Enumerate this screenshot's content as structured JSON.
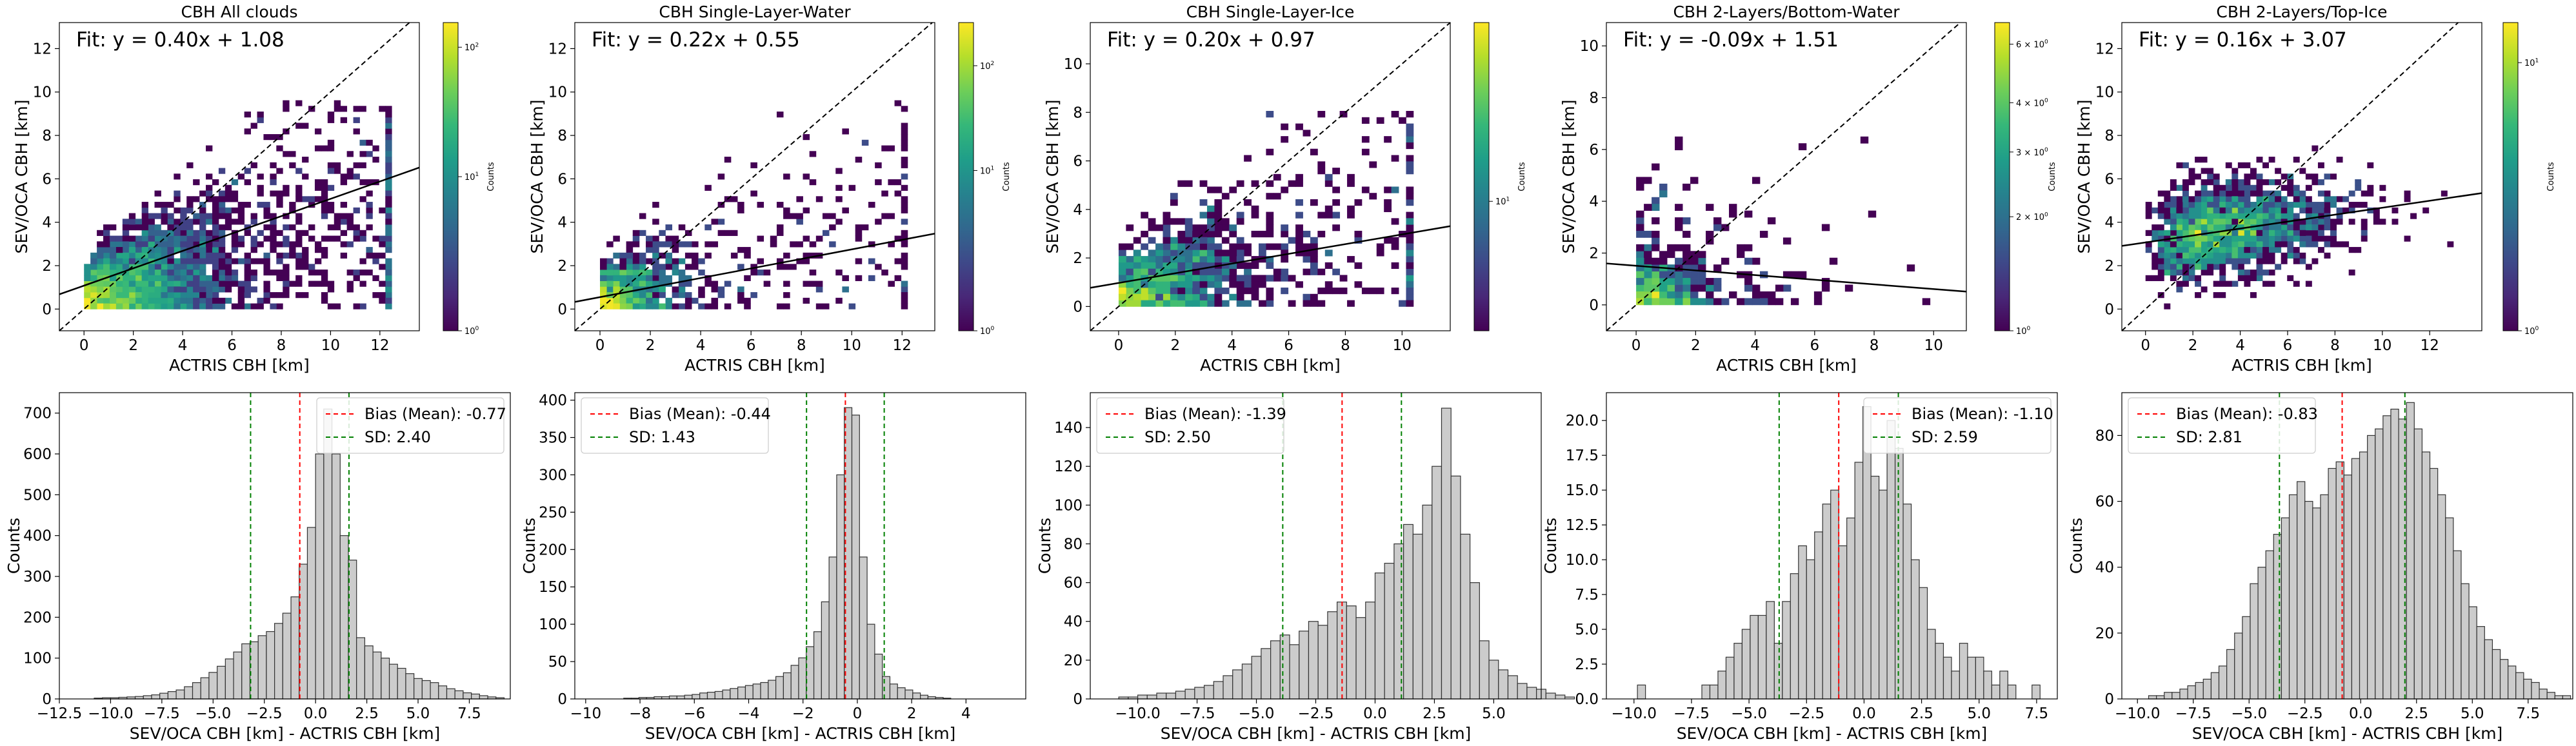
{
  "figure": {
    "colormap": [
      "#440154",
      "#482878",
      "#3e4989",
      "#31688e",
      "#26828e",
      "#1f9e89",
      "#35b779",
      "#6ece58",
      "#b5de2b",
      "#fde725"
    ],
    "colorbar_label": "Counts",
    "identity_line": "dashed",
    "fit_line_color": "#000000",
    "bias_line_color": "#ff0000",
    "sd_line_color": "#008000",
    "hist_fill": "#cccccc"
  },
  "chart_data": [
    {
      "type": "heatmap",
      "title": "CBH All clouds",
      "xlabel": "ACTRIS CBH [km]",
      "ylabel": "SEV/OCA CBH [km]",
      "xlim": [
        -1,
        13.6
      ],
      "ylim": [
        -1,
        13.2
      ],
      "xticks": [
        0,
        2,
        4,
        6,
        8,
        10,
        12
      ],
      "yticks": [
        0,
        2,
        4,
        6,
        8,
        10,
        12
      ],
      "fit_label": "Fit: y = 0.40x + 1.08",
      "fit": {
        "slope": 0.4,
        "intercept": 1.08
      },
      "colorbar": {
        "scale": "log",
        "ticks": [
          "10^0",
          "10^1",
          "10^2"
        ]
      }
    },
    {
      "type": "heatmap",
      "title": "CBH Single-Layer-Water",
      "xlabel": "ACTRIS CBH [km]",
      "ylabel": "SEV/OCA CBH [km]",
      "xlim": [
        -1,
        13.3
      ],
      "ylim": [
        -1,
        13.2
      ],
      "xticks": [
        0,
        2,
        4,
        6,
        8,
        10,
        12
      ],
      "yticks": [
        0,
        2,
        4,
        6,
        8,
        10,
        12
      ],
      "fit_label": "Fit: y = 0.22x + 0.55",
      "fit": {
        "slope": 0.22,
        "intercept": 0.55
      },
      "colorbar": {
        "scale": "log",
        "ticks": [
          "10^0",
          "10^1",
          "10^2"
        ]
      }
    },
    {
      "type": "heatmap",
      "title": "CBH Single-Layer-Ice",
      "xlabel": "ACTRIS CBH [km]",
      "ylabel": "SEV/OCA CBH [km]",
      "xlim": [
        -1,
        11.7
      ],
      "ylim": [
        -1,
        11.7
      ],
      "xticks": [
        0,
        2,
        4,
        6,
        8,
        10
      ],
      "yticks": [
        0,
        2,
        4,
        6,
        8,
        10
      ],
      "fit_label": "Fit: y = 0.20x + 0.97",
      "fit": {
        "slope": 0.2,
        "intercept": 0.97
      },
      "colorbar": {
        "scale": "log",
        "ticks": [
          "10^1"
        ]
      }
    },
    {
      "type": "heatmap",
      "title": "CBH 2-Layers/Bottom-Water",
      "xlabel": "ACTRIS CBH [km]",
      "ylabel": "SEV/OCA CBH [km]",
      "xlim": [
        -1,
        11.1
      ],
      "ylim": [
        -1,
        10.9
      ],
      "xticks": [
        0,
        2,
        4,
        6,
        8,
        10
      ],
      "yticks": [
        0,
        2,
        4,
        6,
        8,
        10
      ],
      "fit_label": "Fit: y = -0.09x + 1.51",
      "fit": {
        "slope": -0.09,
        "intercept": 1.51
      },
      "colorbar": {
        "scale": "log",
        "ticks": [
          "10^0",
          "2 × 10^0",
          "3 × 10^0",
          "4 × 10^0",
          "6 × 10^0"
        ]
      }
    },
    {
      "type": "heatmap",
      "title": "CBH 2-Layers/Top-Ice",
      "xlabel": "ACTRIS CBH [km]",
      "ylabel": "SEV/OCA CBH [km]",
      "xlim": [
        -1,
        14.2
      ],
      "ylim": [
        -1,
        13.2
      ],
      "xticks": [
        0,
        2,
        4,
        6,
        8,
        10,
        12
      ],
      "yticks": [
        0,
        2,
        4,
        6,
        8,
        10,
        12
      ],
      "fit_label": "Fit: y = 0.16x + 3.07",
      "fit": {
        "slope": 0.16,
        "intercept": 3.07
      },
      "colorbar": {
        "scale": "log",
        "ticks": [
          "10^0",
          "10^1"
        ]
      }
    },
    {
      "type": "bar",
      "xlabel": "SEV/OCA CBH [km] - ACTRIS CBH [km]",
      "ylabel": "Counts",
      "xlim": [
        -12.5,
        9.5
      ],
      "ylim": [
        0,
        750
      ],
      "xticks": [
        -12.5,
        -10.0,
        -7.5,
        -5.0,
        -2.5,
        0.0,
        2.5,
        5.0,
        7.5
      ],
      "xtick_labels": [
        "−12.5",
        "−10.0",
        "−7.5",
        "−5.0",
        "−2.5",
        "0.0",
        "2.5",
        "5.0",
        "7.5"
      ],
      "yticks": [
        0,
        100,
        200,
        300,
        400,
        500,
        600,
        700
      ],
      "bias": -0.77,
      "sd": 2.4,
      "legend": [
        "Bias (Mean): -0.77",
        "SD: 2.40"
      ],
      "bin_start": -10.8,
      "bin_width": 0.4,
      "values": [
        2,
        3,
        3,
        4,
        5,
        6,
        8,
        10,
        14,
        18,
        22,
        30,
        40,
        52,
        65,
        80,
        98,
        115,
        135,
        140,
        155,
        165,
        185,
        210,
        250,
        330,
        420,
        600,
        710,
        600,
        400,
        340,
        150,
        130,
        115,
        100,
        85,
        75,
        62,
        50,
        45,
        40,
        32,
        25,
        20,
        15,
        12,
        8,
        5,
        3
      ]
    },
    {
      "type": "bar",
      "xlabel": "SEV/OCA CBH [km] - ACTRIS CBH [km]",
      "ylabel": "Counts",
      "xlim": [
        -10.4,
        6.2
      ],
      "ylim": [
        0,
        410
      ],
      "xticks": [
        -10,
        -8,
        -6,
        -4,
        -2,
        0,
        2,
        4
      ],
      "xtick_labels": [
        "−10",
        "−8",
        "−6",
        "−4",
        "−2",
        "0",
        "2",
        "4"
      ],
      "yticks": [
        0,
        50,
        100,
        150,
        200,
        250,
        300,
        350,
        400
      ],
      "bias": -0.44,
      "sd": 1.43,
      "legend": [
        "Bias (Mean): -0.44",
        "SD: 1.43"
      ],
      "bin_start": -8.6,
      "bin_width": 0.28,
      "values": [
        1,
        1,
        2,
        2,
        3,
        3,
        4,
        4,
        5,
        6,
        8,
        9,
        10,
        12,
        14,
        16,
        18,
        20,
        22,
        25,
        30,
        35,
        45,
        55,
        70,
        90,
        130,
        190,
        300,
        390,
        380,
        190,
        100,
        60,
        30,
        20,
        15,
        12,
        8,
        5,
        3,
        2,
        1
      ]
    },
    {
      "type": "bar",
      "xlabel": "SEV/OCA CBH [km] - ACTRIS CBH [km]",
      "ylabel": "Counts",
      "xlim": [
        -12.0,
        7.0
      ],
      "ylim": [
        0,
        158
      ],
      "xticks": [
        -10.0,
        -7.5,
        -5.0,
        -2.5,
        0.0,
        2.5,
        5.0
      ],
      "xtick_labels": [
        "−10.0",
        "−7.5",
        "−5.0",
        "−2.5",
        "0.0",
        "2.5",
        "5.0"
      ],
      "yticks": [
        0,
        20,
        40,
        60,
        80,
        100,
        120,
        140
      ],
      "bias": -1.39,
      "sd": 2.5,
      "legend": [
        "Bias (Mean): -1.39",
        "SD: 2.50"
      ],
      "bin_start": -10.8,
      "bin_width": 0.4,
      "values": [
        1,
        1,
        2,
        2,
        3,
        3,
        4,
        5,
        6,
        7,
        9,
        12,
        15,
        18,
        22,
        26,
        30,
        33,
        28,
        35,
        40,
        38,
        45,
        50,
        48,
        42,
        50,
        65,
        70,
        80,
        90,
        85,
        100,
        120,
        150,
        115,
        85,
        60,
        30,
        20,
        15,
        12,
        8,
        6,
        5,
        3,
        2,
        1
      ]
    },
    {
      "type": "bar",
      "xlabel": "SEV/OCA CBH [km] - ACTRIS CBH [km]",
      "ylabel": "Counts",
      "xlim": [
        -11.2,
        8.4
      ],
      "ylim": [
        0,
        22
      ],
      "xticks": [
        -10.0,
        -7.5,
        -5.0,
        -2.5,
        0.0,
        2.5,
        5.0,
        7.5
      ],
      "xtick_labels": [
        "−10.0",
        "−7.5",
        "−5.0",
        "−2.5",
        "0.0",
        "2.5",
        "5.0",
        "7.5"
      ],
      "yticks": [
        0.0,
        2.5,
        5.0,
        7.5,
        10.0,
        12.5,
        15.0,
        17.5,
        20.0
      ],
      "ytick_labels": [
        "0.0",
        "2.5",
        "5.0",
        "7.5",
        "10.0",
        "12.5",
        "15.0",
        "17.5",
        "20.0"
      ],
      "bias": -1.1,
      "sd": 2.59,
      "legend": [
        "Bias (Mean): -1.10",
        "SD: 2.59"
      ],
      "bin_start": -9.85,
      "bin_width": 0.35,
      "values": [
        1,
        0,
        0,
        0,
        0,
        0,
        0,
        0,
        1,
        1,
        2,
        3,
        4,
        5,
        6,
        6,
        7,
        4,
        7,
        9,
        11,
        10,
        12,
        14,
        15,
        11,
        13,
        17,
        21,
        16,
        15,
        20,
        18,
        14,
        10,
        8,
        5,
        4,
        3,
        2,
        4,
        3,
        3,
        2,
        1,
        2,
        1,
        0,
        0,
        1
      ]
    },
    {
      "type": "bar",
      "xlabel": "SEV/OCA CBH [km] - ACTRIS CBH [km]",
      "ylabel": "Counts",
      "xlim": [
        -10.7,
        9.5
      ],
      "ylim": [
        0,
        93
      ],
      "xticks": [
        -10.0,
        -7.5,
        -5.0,
        -2.5,
        0.0,
        2.5,
        5.0,
        7.5
      ],
      "xtick_labels": [
        "−10.0",
        "−7.5",
        "−5.0",
        "−2.5",
        "0.0",
        "2.5",
        "5.0",
        "7.5"
      ],
      "yticks": [
        0,
        20,
        40,
        60,
        80
      ],
      "bias": -0.83,
      "sd": 2.81,
      "legend": [
        "Bias (Mean): -0.83",
        "SD: 2.81"
      ],
      "bin_start": -9.5,
      "bin_width": 0.35,
      "values": [
        1,
        1,
        2,
        2,
        3,
        4,
        5,
        6,
        8,
        10,
        15,
        20,
        25,
        35,
        40,
        45,
        50,
        55,
        62,
        66,
        60,
        58,
        62,
        70,
        72,
        68,
        73,
        75,
        80,
        82,
        86,
        88,
        85,
        90,
        82,
        75,
        70,
        62,
        55,
        45,
        35,
        28,
        22,
        18,
        15,
        12,
        10,
        8,
        6,
        5,
        3,
        2,
        1,
        1
      ]
    }
  ]
}
